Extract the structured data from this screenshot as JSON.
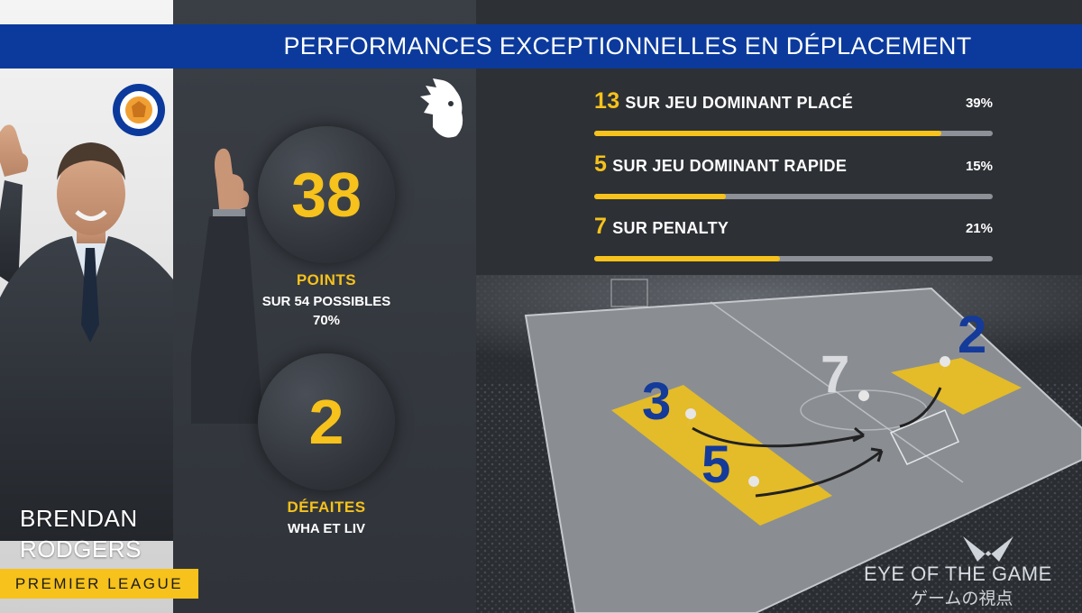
{
  "title": "PERFORMANCES EXCEPTIONNELLES EN DÉPLACEMENT",
  "coach": {
    "first_name": "BRENDAN",
    "last_name": "RODGERS",
    "league": "PREMIER LEAGUE",
    "club_badge_text": "LEICESTER CITY FOOTBALL CLUB"
  },
  "stats": {
    "points": {
      "value": "38",
      "label": "POINTS",
      "sub1": "SUR 54 POSSIBLES",
      "sub2": "70%"
    },
    "defeats": {
      "value": "2",
      "label": "DÉFAITES",
      "sub1": "WHA ET LIV"
    }
  },
  "goal_types": [
    {
      "count": "13",
      "label": "SUR JEU DOMINANT PLACÉ",
      "pct_text": "39%",
      "fill": 0.87
    },
    {
      "count": "5",
      "label": "SUR JEU DOMINANT RAPIDE",
      "pct_text": "15%",
      "fill": 0.33
    },
    {
      "count": "7",
      "label": "SUR PENALTY",
      "pct_text": "21%",
      "fill": 0.466
    }
  ],
  "pitch_numbers": {
    "zone_left_top": "3",
    "zone_left_bottom": "5",
    "penalty": "7",
    "zone_right": "2"
  },
  "brand": {
    "name": "EYE OF THE GAME",
    "subtitle": "ゲームの視点"
  },
  "colors": {
    "accent_yellow": "#f6c21b",
    "banner_blue": "#0b3a9c",
    "number_blue": "#143a9a",
    "panel_dark": "#30343a"
  },
  "icons": [
    "leicester-city-crest-icon",
    "premier-league-lion-icon",
    "eagle-logo-icon",
    "thumbs-up-icon"
  ]
}
